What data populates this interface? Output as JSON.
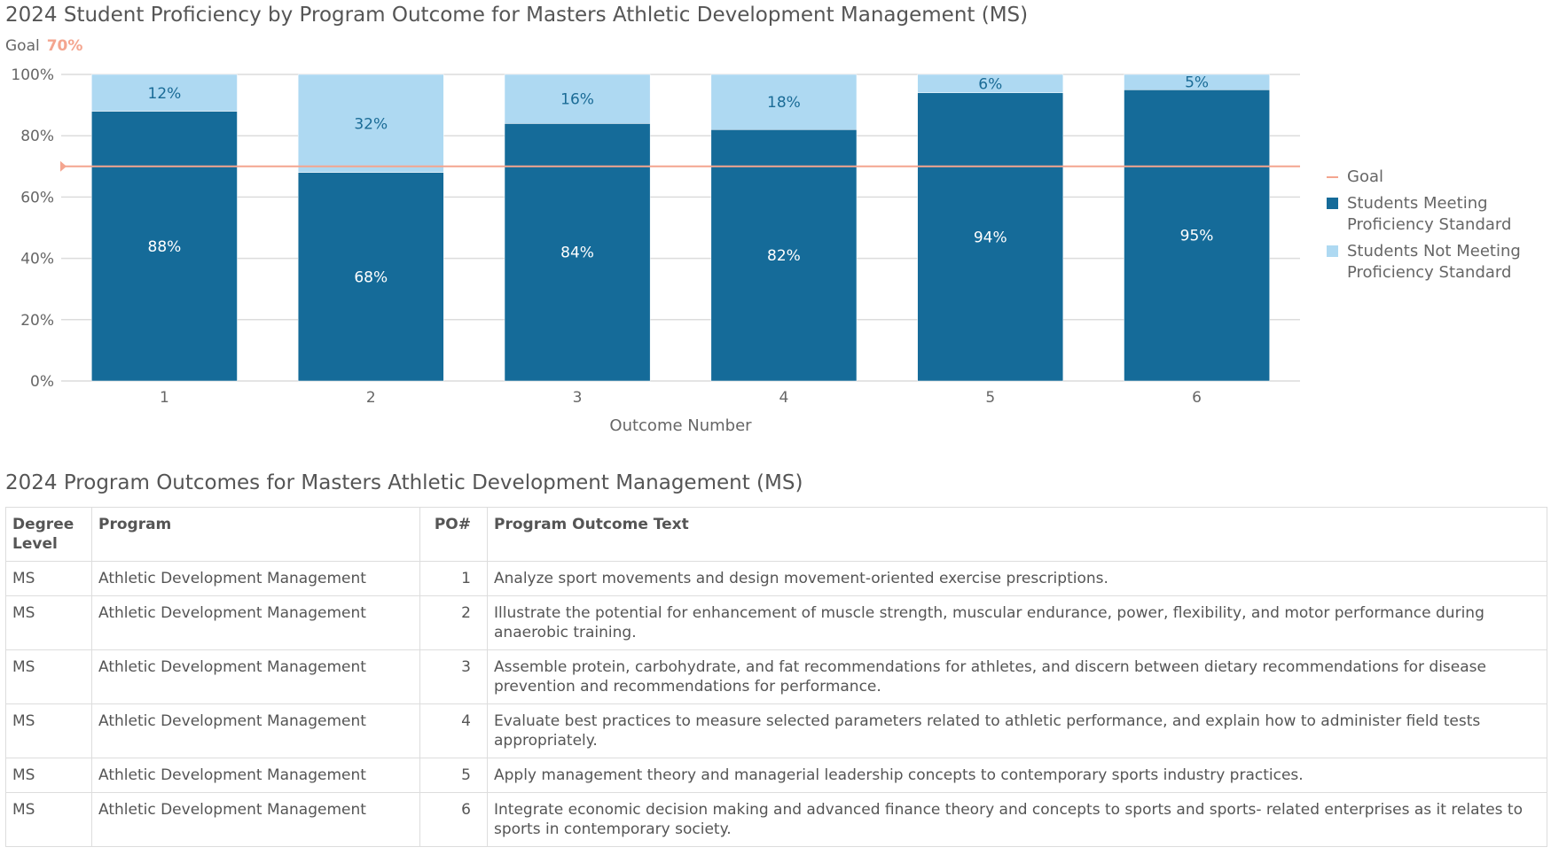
{
  "chart_title": "2024 Student Proficiency by Program Outcome for Masters Athletic Development Management (MS)",
  "goal": {
    "label": "Goal",
    "value_text": "70%"
  },
  "chart_data": {
    "type": "bar",
    "stacked": true,
    "xlabel": "Outcome Number",
    "ylabel": "",
    "ylim": [
      0,
      100
    ],
    "yticks": [
      "0%",
      "20%",
      "40%",
      "60%",
      "80%",
      "100%"
    ],
    "categories": [
      "1",
      "2",
      "3",
      "4",
      "5",
      "6"
    ],
    "series": [
      {
        "name": "Students Meeting Proficiency Standard",
        "color": "#156b99",
        "values": [
          88,
          68,
          84,
          82,
          94,
          95
        ],
        "labels": [
          "88%",
          "68%",
          "84%",
          "82%",
          "94%",
          "95%"
        ]
      },
      {
        "name": "Students Not Meeting Proficiency Standard",
        "color": "#aed9f2",
        "values": [
          12,
          32,
          16,
          18,
          6,
          5
        ],
        "labels": [
          "12%",
          "32%",
          "16%",
          "18%",
          "6%",
          "5%"
        ]
      }
    ],
    "goal_line": {
      "name": "Goal",
      "value": 70,
      "color": "#f4a58f"
    },
    "grid": true,
    "legend": "right"
  },
  "table": {
    "title": "2024 Program Outcomes for Masters Athletic Development Management (MS)",
    "headers": [
      "Degree Level",
      "Program",
      "PO#",
      "Program Outcome Text"
    ],
    "rows": [
      [
        "MS",
        "Athletic Development Management",
        "1",
        "Analyze sport movements and design movement-oriented exercise prescriptions."
      ],
      [
        "MS",
        "Athletic Development Management",
        "2",
        "Illustrate the potential for enhancement of muscle strength, muscular endurance, power, flexibility, and motor performance during anaerobic training."
      ],
      [
        "MS",
        "Athletic Development Management",
        "3",
        "Assemble protein, carbohydrate, and fat recommendations for athletes, and discern between dietary recommendations for disease prevention and recommendations for performance."
      ],
      [
        "MS",
        "Athletic Development Management",
        "4",
        "Evaluate best practices to measure selected parameters related to athletic performance, and explain how to administer field tests appropriately."
      ],
      [
        "MS",
        "Athletic Development Management",
        "5",
        "Apply management theory and managerial leadership concepts to contemporary sports industry practices."
      ],
      [
        "MS",
        "Athletic Development Management",
        "6",
        "Integrate economic decision making and advanced finance theory and concepts to sports and sports- related enterprises as it relates to sports in contemporary society."
      ]
    ]
  }
}
